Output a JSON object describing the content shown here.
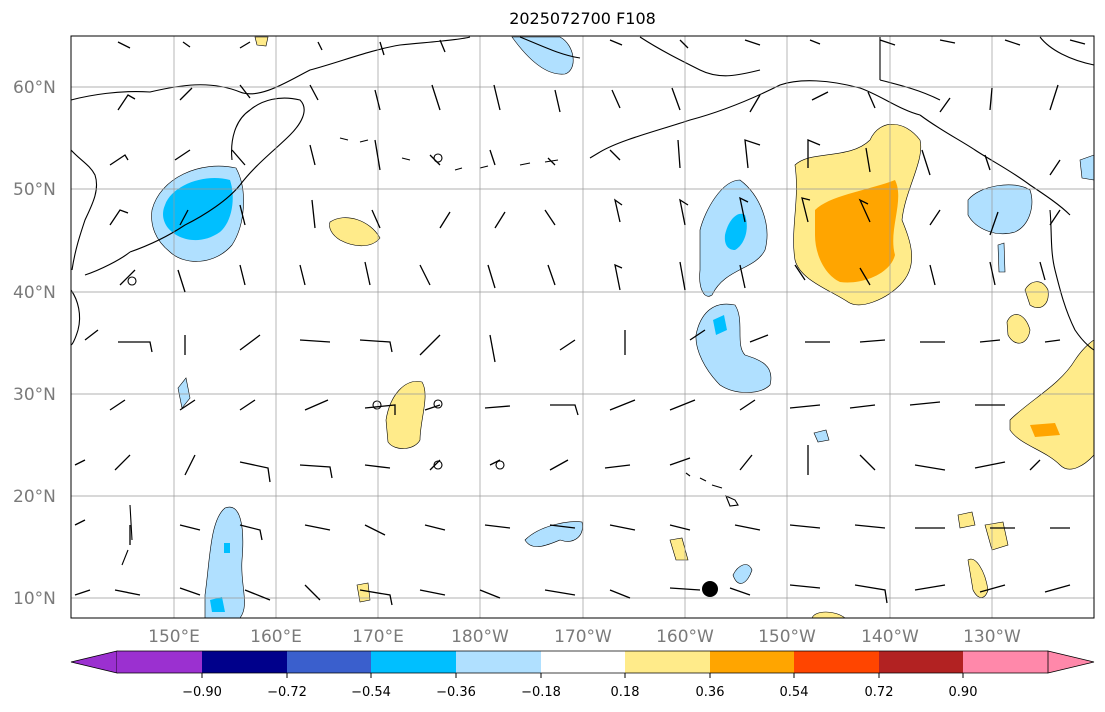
{
  "title": "2025072700 F108",
  "lat_labels": [
    "60°N",
    "50°N",
    "40°N",
    "30°N",
    "20°N",
    "10°N"
  ],
  "lon_labels": [
    "150°E",
    "160°E",
    "170°E",
    "180°W",
    "170°W",
    "160°W",
    "150°W",
    "140°W",
    "130°W"
  ],
  "colorbar": {
    "ticks": [
      "−0.90",
      "−0.72",
      "−0.54",
      "−0.36",
      "−0.18",
      "0.18",
      "0.36",
      "0.54",
      "0.72",
      "0.90"
    ],
    "colors": [
      "#9b30d0",
      "#00008b",
      "#3a5fcd",
      "#00bfff",
      "#b0e0ff",
      "#ffffff",
      "#ffeb8a",
      "#ffa500",
      "#ff4500",
      "#b22222",
      "#ff88aa"
    ]
  },
  "map_colors": {
    "light_blue": "#b0e0ff",
    "blue": "#00bfff",
    "light_yellow": "#ffeb8a",
    "orange": "#ffa500"
  }
}
